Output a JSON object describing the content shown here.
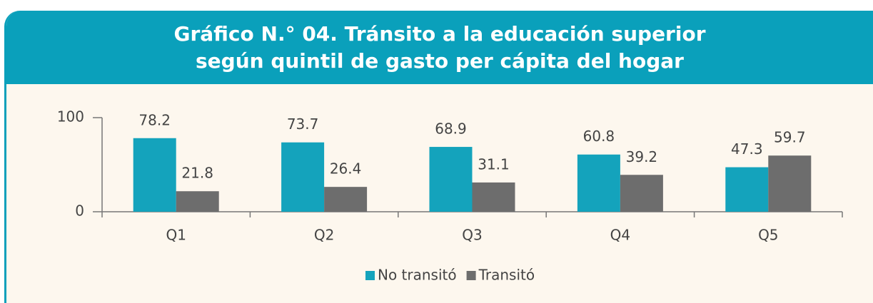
{
  "chart_data": {
    "type": "bar",
    "title": "Gráfico N.° 04. Tránsito a la educación superior según quintil de gasto per cápita del hogar",
    "categories": [
      "Q1",
      "Q2",
      "Q3",
      "Q4",
      "Q5"
    ],
    "series": [
      {
        "name": "No transitó",
        "color": "#14a3bc",
        "values": [
          78.2,
          73.7,
          68.9,
          60.8,
          47.3
        ]
      },
      {
        "name": "Transitó",
        "color": "#6d6d6d",
        "values": [
          21.8,
          26.4,
          31.1,
          39.2,
          59.7
        ]
      }
    ],
    "ylim": [
      0,
      100
    ],
    "yticks": [
      0,
      100
    ],
    "grid": false,
    "legend": "bottom"
  }
}
